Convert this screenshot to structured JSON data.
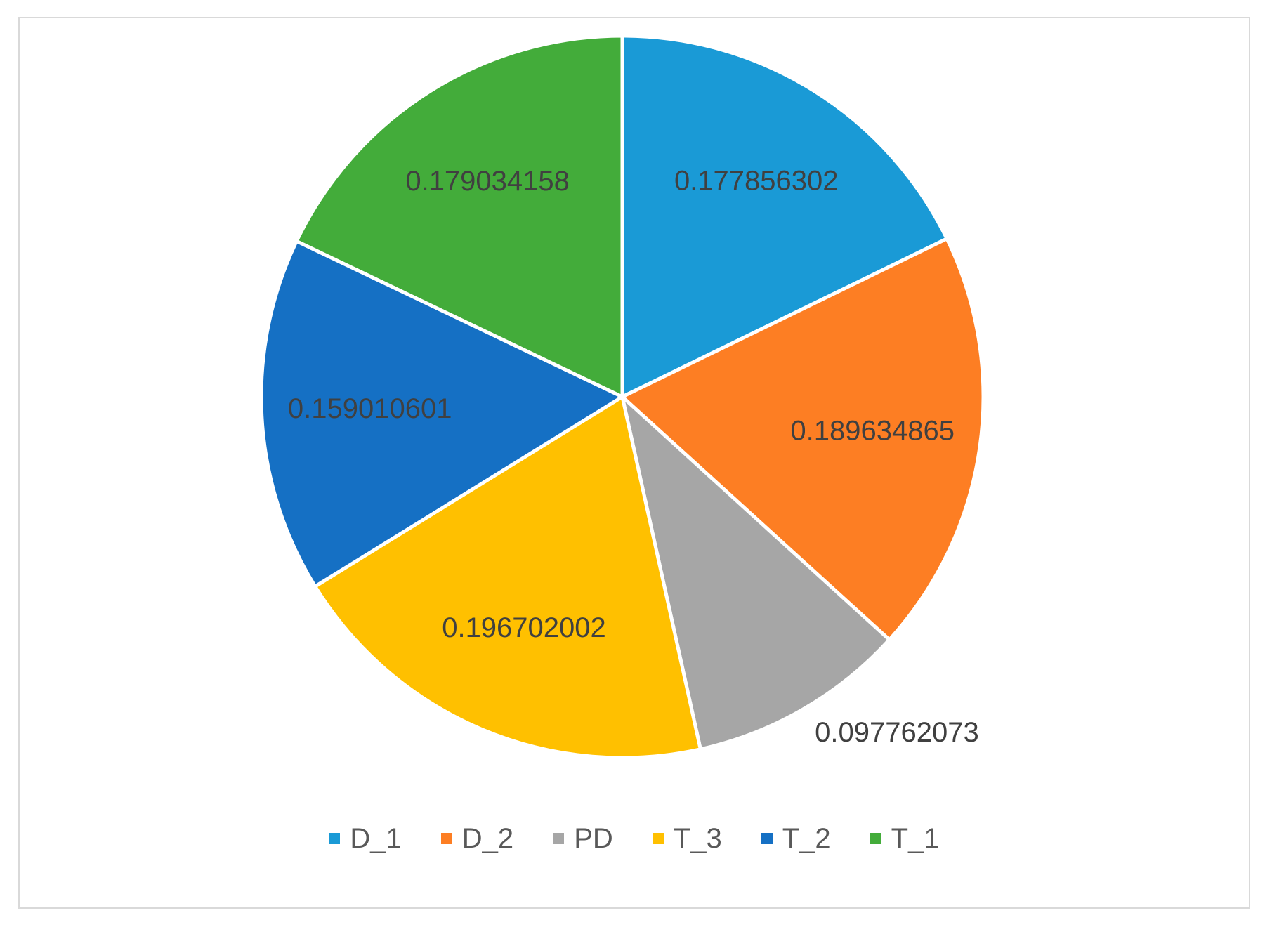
{
  "chart_data": {
    "type": "pie",
    "title": "",
    "categories": [
      "D_1",
      "D_2",
      "PD",
      "T_3",
      "T_2",
      "T_1"
    ],
    "values": [
      0.177856302,
      0.189634865,
      0.097762073,
      0.196702002,
      0.159010601,
      0.179034158
    ],
    "labels": [
      "0.177856302",
      "0.189634865",
      "0.097762073",
      "0.196702002",
      "0.159010601",
      "0.179034158"
    ],
    "colors": [
      "#1a9ad6",
      "#fd7e23",
      "#a6a6a6",
      "#ffc000",
      "#1570c4",
      "#43ac3a"
    ],
    "start_angle_deg": 0,
    "direction": "clockwise",
    "legend": {
      "position": "bottom",
      "entries": [
        "D_1",
        "D_2",
        "PD",
        "T_3",
        "T_2",
        "T_1"
      ]
    }
  }
}
